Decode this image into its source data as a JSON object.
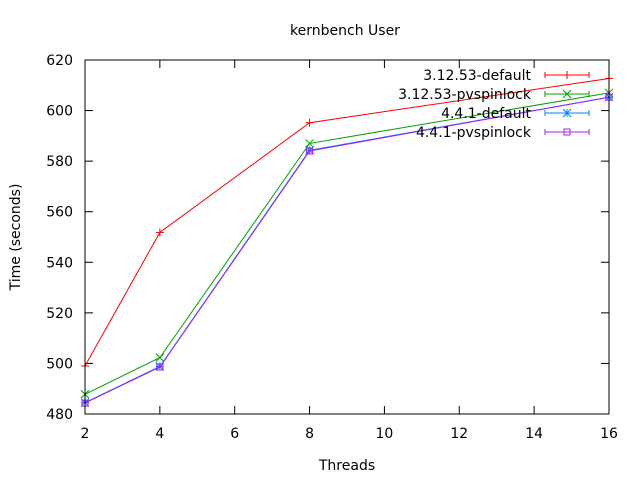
{
  "chart_data": {
    "type": "line",
    "title": "kernbench User",
    "xlabel": "Threads",
    "ylabel": "Time (seconds)",
    "xlim": [
      2,
      16
    ],
    "ylim": [
      480,
      620
    ],
    "xticks": [
      2,
      4,
      6,
      8,
      10,
      12,
      14,
      16
    ],
    "yticks": [
      480,
      500,
      520,
      540,
      560,
      580,
      600,
      620
    ],
    "grid": false,
    "legend_position": "top-right",
    "x": [
      2,
      4,
      8,
      16
    ],
    "series": [
      {
        "name": "3.12.53-default",
        "values": [
          499,
          551.8,
          595.2,
          612.7
        ],
        "color": "#ff0000",
        "marker": "plus"
      },
      {
        "name": "3.12.53-pvspinlock",
        "values": [
          487.8,
          502.3,
          587,
          607
        ],
        "color": "#00a000",
        "marker": "cross"
      },
      {
        "name": "4.4.1-default",
        "values": [
          484.5,
          498.8,
          584.3,
          605.3
        ],
        "color": "#0080ff",
        "marker": "star"
      },
      {
        "name": "4.4.1-pvspinlock",
        "values": [
          484.3,
          498.6,
          584,
          605.3
        ],
        "color": "#a020f0",
        "marker": "square"
      }
    ]
  }
}
